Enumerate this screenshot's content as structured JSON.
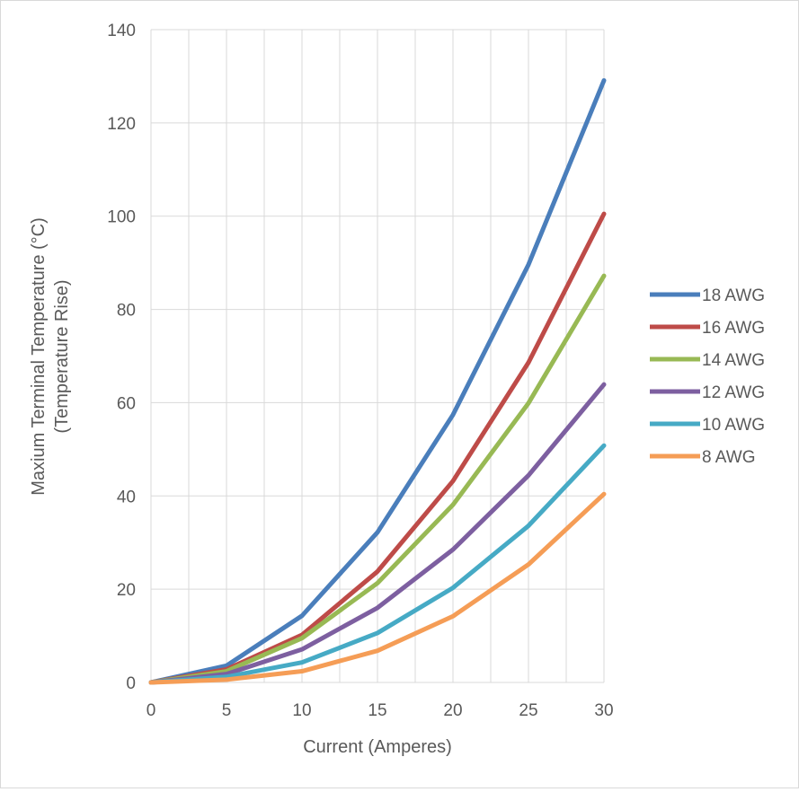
{
  "chart_data": {
    "type": "line",
    "title": "",
    "xlabel": "Current (Amperes)",
    "ylabel_lines": [
      "Maxium Terminal Temperature (°C)",
      "(Temperature Rise)"
    ],
    "x": [
      0,
      5,
      10,
      15,
      20,
      25,
      30
    ],
    "x_ticks": [
      0,
      5,
      10,
      15,
      20,
      25,
      30
    ],
    "y_ticks": [
      0,
      20,
      40,
      60,
      80,
      100,
      120,
      140
    ],
    "xlim": [
      0,
      30
    ],
    "ylim": [
      0,
      140
    ],
    "grid": true,
    "legend_position": "right",
    "series": [
      {
        "name": "18 AWG",
        "color": "#4a7ebb",
        "values": [
          0,
          3.6,
          14.3,
          32.2,
          57.4,
          89.6,
          129.1
        ]
      },
      {
        "name": "16 AWG",
        "color": "#be4b48",
        "values": [
          0,
          2.8,
          10.2,
          23.8,
          43.2,
          68.6,
          100.5
        ]
      },
      {
        "name": "14 AWG",
        "color": "#98b954",
        "values": [
          0,
          2.4,
          9.5,
          21.3,
          38.1,
          59.9,
          87.2
        ]
      },
      {
        "name": "12 AWG",
        "color": "#7d5fa0",
        "values": [
          0,
          1.8,
          7.1,
          16.0,
          28.5,
          44.4,
          63.9
        ]
      },
      {
        "name": "10 AWG",
        "color": "#46aac5",
        "values": [
          0,
          1.2,
          4.3,
          10.6,
          20.3,
          33.6,
          50.8
        ]
      },
      {
        "name": "8 AWG",
        "color": "#f59d56",
        "values": [
          0,
          0.6,
          2.4,
          6.8,
          14.2,
          25.3,
          40.4
        ]
      }
    ]
  }
}
